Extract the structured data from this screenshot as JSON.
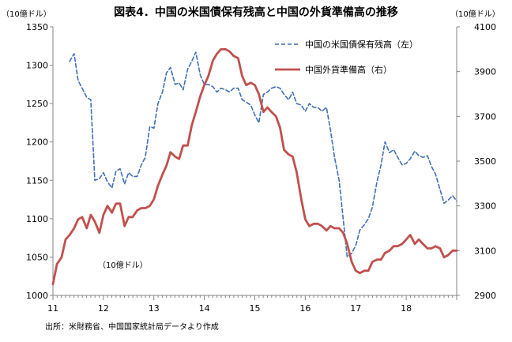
{
  "chart_data": {
    "type": "line",
    "title": "図表4．中国の米国債保有残高と中国の外貨準備高の推移",
    "left_unit": "（10億ドル）",
    "right_unit": "（10億ドル）",
    "inner_unit": "（10億ドル）",
    "source": "出所：米財務省、中国国家統計局データより作成",
    "x_range": [
      2011,
      2019
    ],
    "x_ticks": [
      {
        "value": 2011,
        "label": "11"
      },
      {
        "value": 2012,
        "label": "12"
      },
      {
        "value": 2013,
        "label": "13"
      },
      {
        "value": 2014,
        "label": "14"
      },
      {
        "value": 2015,
        "label": "15"
      },
      {
        "value": 2016,
        "label": "16"
      },
      {
        "value": 2017,
        "label": "17"
      },
      {
        "value": 2018,
        "label": "18"
      }
    ],
    "y_left": {
      "range": [
        1000,
        1350
      ],
      "ticks": [
        1000,
        1050,
        1100,
        1150,
        1200,
        1250,
        1300,
        1350
      ]
    },
    "y_right": {
      "range": [
        2900,
        4100
      ],
      "ticks": [
        2900,
        3100,
        3300,
        3500,
        3700,
        3900,
        4100
      ]
    },
    "series": [
      {
        "name": "中国の米国債保有残高（左）",
        "axis": "left",
        "style": "dashed",
        "color": "#3f6fb4",
        "x": [
          2011.33,
          2011.42,
          2011.5,
          2011.58,
          2011.67,
          2011.75,
          2011.83,
          2011.92,
          2012.0,
          2012.08,
          2012.17,
          2012.25,
          2012.33,
          2012.42,
          2012.5,
          2012.58,
          2012.67,
          2012.75,
          2012.83,
          2012.92,
          2013.0,
          2013.08,
          2013.17,
          2013.25,
          2013.33,
          2013.42,
          2013.5,
          2013.58,
          2013.67,
          2013.75,
          2013.83,
          2013.92,
          2014.0,
          2014.08,
          2014.17,
          2014.25,
          2014.33,
          2014.42,
          2014.5,
          2014.58,
          2014.67,
          2014.75,
          2014.83,
          2014.92,
          2015.0,
          2015.08,
          2015.17,
          2015.25,
          2015.33,
          2015.42,
          2015.5,
          2015.58,
          2015.67,
          2015.75,
          2015.83,
          2015.92,
          2016.0,
          2016.08,
          2016.17,
          2016.25,
          2016.33,
          2016.42,
          2016.5,
          2016.58,
          2016.67,
          2016.75,
          2016.83,
          2016.92,
          2017.0,
          2017.08,
          2017.17,
          2017.25,
          2017.33,
          2017.42,
          2017.5,
          2017.58,
          2017.67,
          2017.75,
          2017.83,
          2017.92,
          2018.0,
          2018.08,
          2018.17,
          2018.25,
          2018.33,
          2018.42,
          2018.5,
          2018.58,
          2018.67,
          2018.75,
          2018.83,
          2018.92,
          2019.0
        ],
        "values": [
          1305,
          1315,
          1280,
          1270,
          1258,
          1255,
          1150,
          1152,
          1160,
          1148,
          1140,
          1162,
          1165,
          1145,
          1160,
          1155,
          1155,
          1170,
          1180,
          1220,
          1218,
          1250,
          1265,
          1290,
          1297,
          1275,
          1277,
          1268,
          1295,
          1305,
          1317,
          1287,
          1275,
          1275,
          1272,
          1265,
          1270,
          1268,
          1265,
          1270,
          1270,
          1255,
          1252,
          1248,
          1235,
          1225,
          1262,
          1265,
          1270,
          1272,
          1270,
          1262,
          1255,
          1265,
          1250,
          1248,
          1240,
          1250,
          1245,
          1245,
          1240,
          1245,
          1215,
          1180,
          1150,
          1100,
          1050,
          1055,
          1065,
          1085,
          1092,
          1100,
          1115,
          1148,
          1170,
          1200,
          1186,
          1190,
          1180,
          1170,
          1172,
          1178,
          1188,
          1182,
          1180,
          1182,
          1168,
          1158,
          1138,
          1120,
          1124,
          1130,
          1123
        ]
      },
      {
        "name": "中国外貨準備高（右）",
        "axis": "right",
        "style": "solid",
        "color": "#c0504d",
        "x": [
          2011.0,
          2011.08,
          2011.17,
          2011.25,
          2011.33,
          2011.42,
          2011.5,
          2011.58,
          2011.67,
          2011.75,
          2011.83,
          2011.92,
          2012.0,
          2012.08,
          2012.17,
          2012.25,
          2012.33,
          2012.42,
          2012.5,
          2012.58,
          2012.67,
          2012.75,
          2012.83,
          2012.92,
          2013.0,
          2013.08,
          2013.17,
          2013.25,
          2013.33,
          2013.42,
          2013.5,
          2013.58,
          2013.67,
          2013.75,
          2013.83,
          2013.92,
          2014.0,
          2014.08,
          2014.17,
          2014.25,
          2014.33,
          2014.42,
          2014.5,
          2014.58,
          2014.67,
          2014.75,
          2014.83,
          2014.92,
          2015.0,
          2015.08,
          2015.17,
          2015.25,
          2015.33,
          2015.42,
          2015.5,
          2015.58,
          2015.67,
          2015.75,
          2015.83,
          2015.92,
          2016.0,
          2016.08,
          2016.17,
          2016.25,
          2016.33,
          2016.42,
          2016.5,
          2016.58,
          2016.67,
          2016.75,
          2016.83,
          2016.92,
          2017.0,
          2017.08,
          2017.17,
          2017.25,
          2017.33,
          2017.42,
          2017.5,
          2017.58,
          2017.67,
          2017.75,
          2017.83,
          2017.92,
          2018.0,
          2018.08,
          2018.17,
          2018.25,
          2018.33,
          2018.42,
          2018.5,
          2018.58,
          2018.67,
          2018.75,
          2018.83,
          2018.92,
          2019.0
        ],
        "values": [
          2950,
          3040,
          3070,
          3150,
          3170,
          3200,
          3240,
          3250,
          3200,
          3260,
          3230,
          3180,
          3260,
          3300,
          3270,
          3310,
          3310,
          3210,
          3250,
          3250,
          3280,
          3290,
          3290,
          3300,
          3330,
          3390,
          3440,
          3480,
          3540,
          3520,
          3510,
          3570,
          3570,
          3660,
          3720,
          3790,
          3840,
          3880,
          3950,
          3980,
          4000,
          4000,
          3990,
          3970,
          3960,
          3880,
          3840,
          3850,
          3840,
          3800,
          3720,
          3740,
          3720,
          3700,
          3650,
          3550,
          3530,
          3520,
          3450,
          3330,
          3240,
          3210,
          3220,
          3220,
          3210,
          3190,
          3210,
          3200,
          3200,
          3180,
          3130,
          3050,
          3010,
          3000,
          3010,
          3010,
          3050,
          3060,
          3060,
          3090,
          3100,
          3120,
          3120,
          3130,
          3150,
          3170,
          3130,
          3150,
          3130,
          3110,
          3110,
          3120,
          3110,
          3070,
          3080,
          3100,
          3100
        ]
      }
    ],
    "grid": false,
    "legend_position": "top-right"
  }
}
